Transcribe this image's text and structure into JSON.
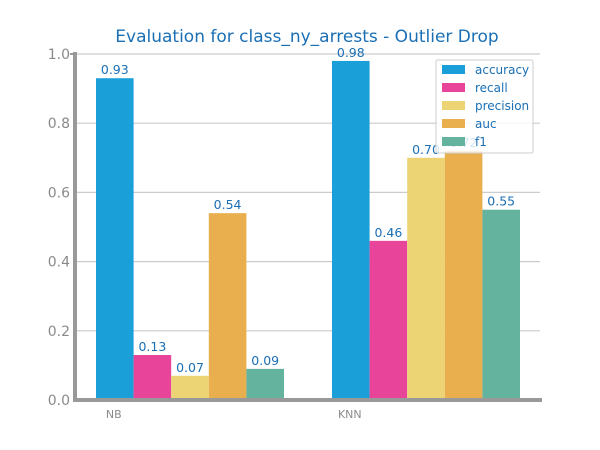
{
  "chart_data": {
    "type": "bar",
    "title": "Evaluation for class_ny_arrests - Outlier Drop",
    "xlabel": "",
    "ylabel": "",
    "categories": [
      "NB",
      "KNN"
    ],
    "ylim": [
      0,
      1.0
    ],
    "yticks": [
      "0.0",
      "0.2",
      "0.4",
      "0.6",
      "0.8",
      "1.0"
    ],
    "grid": "horizontal",
    "legend_position": "top-right",
    "series": [
      {
        "name": "accuracy",
        "color": "#1a9fd9",
        "values": [
          0.93,
          0.98
        ],
        "labels": [
          "0.93",
          "0.98"
        ]
      },
      {
        "name": "recall",
        "color": "#e8459a",
        "values": [
          0.13,
          0.46
        ],
        "labels": [
          "0.13",
          "0.46"
        ]
      },
      {
        "name": "precision",
        "color": "#ecd475",
        "values": [
          0.07,
          0.7
        ],
        "labels": [
          "0.07",
          "0.70"
        ]
      },
      {
        "name": "auc",
        "color": "#e9ae4d",
        "values": [
          0.54,
          0.72
        ],
        "labels": [
          "0.54",
          "0.72"
        ]
      },
      {
        "name": "f1",
        "color": "#64b39e",
        "values": [
          0.09,
          0.55
        ],
        "labels": [
          "0.09",
          "0.55"
        ]
      }
    ]
  }
}
